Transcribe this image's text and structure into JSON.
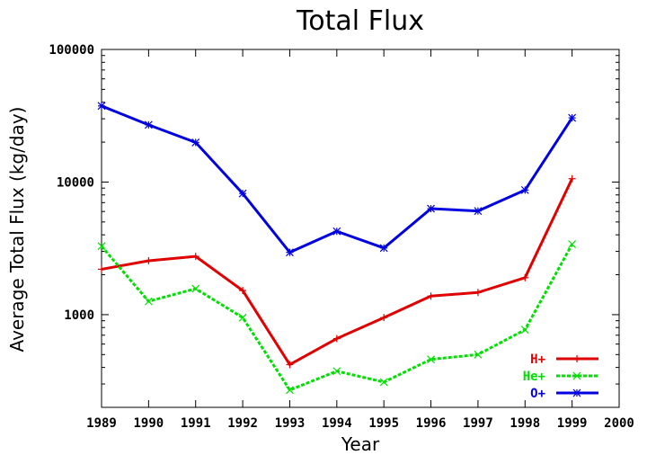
{
  "chart_data": {
    "type": "line",
    "title": "Total Flux",
    "xlabel": "Year",
    "ylabel": "Average Total Flux (kg/day)",
    "xlim": [
      1989,
      2000
    ],
    "x_ticks": [
      "1989",
      "1990",
      "1991",
      "1992",
      "1993",
      "1994",
      "1995",
      "1996",
      "1997",
      "1998",
      "1999",
      "2000"
    ],
    "ylim": [
      200,
      100000
    ],
    "y_scale": "log",
    "y_ticks": [
      "1000",
      "10000",
      "100000"
    ],
    "grid": false,
    "legend_position": "bottom-right",
    "x": [
      1989,
      1990,
      1991,
      1992,
      1993,
      1994,
      1995,
      1996,
      1997,
      1998,
      1999
    ],
    "series": [
      {
        "name": "H+",
        "color": "#e00000",
        "marker": "+",
        "dash": "solid",
        "values": [
          2200,
          2550,
          2750,
          1520,
          420,
          660,
          950,
          1380,
          1470,
          1900,
          10600
        ]
      },
      {
        "name": "He+",
        "color": "#00e000",
        "marker": "x",
        "dash": "dashed",
        "values": [
          3280,
          1260,
          1570,
          950,
          270,
          375,
          310,
          460,
          500,
          770,
          3400
        ]
      },
      {
        "name": "O+",
        "color": "#0000e0",
        "marker": "*",
        "dash": "solid",
        "values": [
          37500,
          27000,
          19900,
          8200,
          2950,
          4250,
          3180,
          6300,
          6050,
          8700,
          30500
        ]
      }
    ]
  }
}
